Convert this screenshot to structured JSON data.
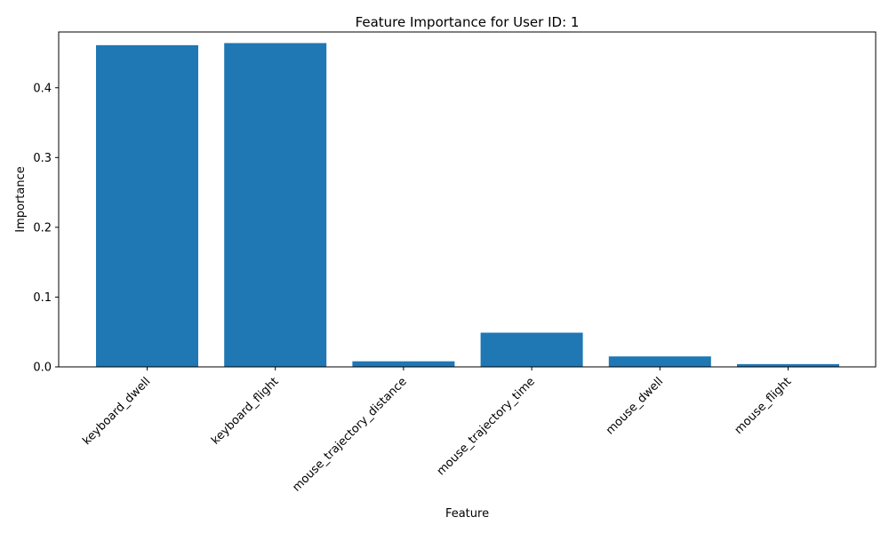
{
  "chart_data": {
    "type": "bar",
    "title": "Feature Importance for User ID: 1",
    "xlabel": "Feature",
    "ylabel": "Importance",
    "categories": [
      "keyboard_dwell",
      "keyboard_flight",
      "mouse_trajectory_distance",
      "mouse_trajectory_time",
      "mouse_dwell",
      "mouse_flight"
    ],
    "values": [
      0.461,
      0.464,
      0.008,
      0.049,
      0.015,
      0.004
    ],
    "ylim": [
      0,
      0.4799
    ],
    "yticks": [
      0.0,
      0.1,
      0.2,
      0.3,
      0.4
    ],
    "ytick_labels": [
      "0.0",
      "0.1",
      "0.2",
      "0.3",
      "0.4"
    ],
    "bar_color": "#1f77b4",
    "grid": false,
    "legend": null
  }
}
